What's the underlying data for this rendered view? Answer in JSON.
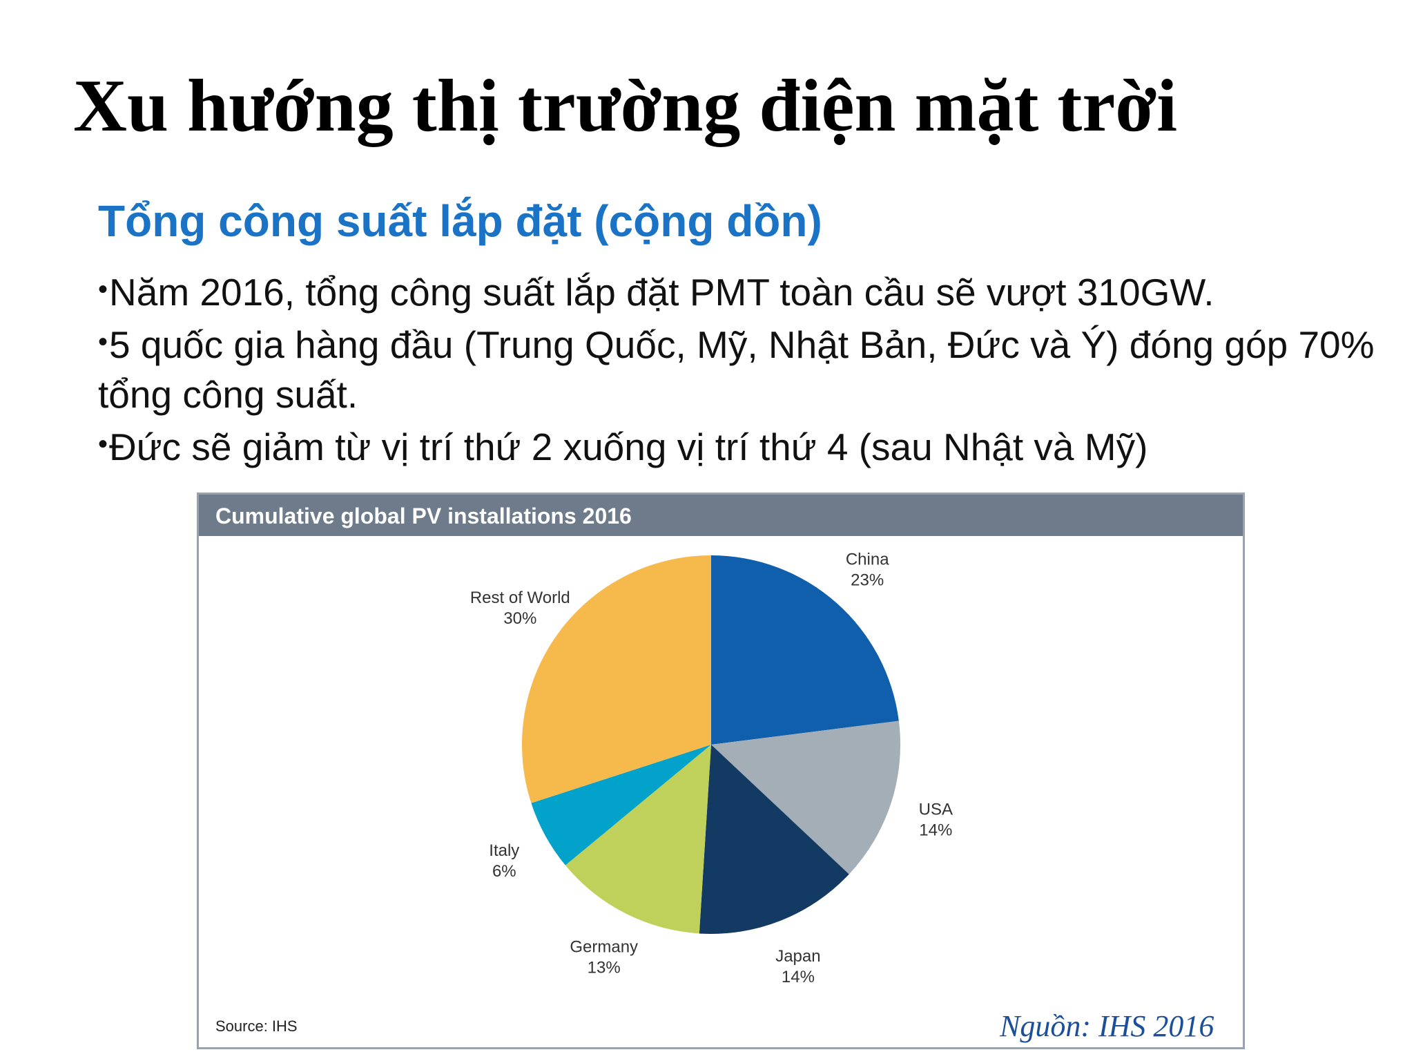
{
  "slide": {
    "title": "Xu hướng thị trường điện mặt trời",
    "subtitle": "Tổng công suất lắp đặt (cộng dồn)",
    "bullet_mark": "•",
    "bullets": [
      "Năm 2016, tổng công suất lắp đặt PMT toàn cầu sẽ vượt 310GW.",
      "5 quốc gia hàng đầu (Trung Quốc, Mỹ, Nhật Bản, Đức và Ý) đóng góp 70% tổng công suất.",
      "Đức sẽ giảm từ vị trí thứ 2 xuống vị trí thứ 4 (sau Nhật và Mỹ)"
    ],
    "citation": "Nguồn: IHS 2016"
  },
  "colors": {
    "subtitle": "#1a73c4",
    "citation": "#1b4f9a",
    "header_band": "#6e7b8a"
  },
  "chart_data": {
    "type": "pie",
    "title": "Cumulative global PV installations 2016",
    "source": "Source: IHS",
    "slices": [
      {
        "label": "China",
        "pct_label": "23%",
        "value": 23,
        "color": "#0f5fad"
      },
      {
        "label": "USA",
        "pct_label": "14%",
        "value": 14,
        "color": "#a3aeb6"
      },
      {
        "label": "Japan",
        "pct_label": "14%",
        "value": 14,
        "color": "#123a63"
      },
      {
        "label": "Germany",
        "pct_label": "13%",
        "value": 13,
        "color": "#bfd15a"
      },
      {
        "label": "Italy",
        "pct_label": "6%",
        "value": 6,
        "color": "#02a2cb"
      },
      {
        "label": "Rest of World",
        "pct_label": "30%",
        "value": 30,
        "color": "#f6b94c"
      }
    ],
    "start_angle": "12 o'clock",
    "direction": "clockwise",
    "legend": "none (labels beside slices)"
  }
}
